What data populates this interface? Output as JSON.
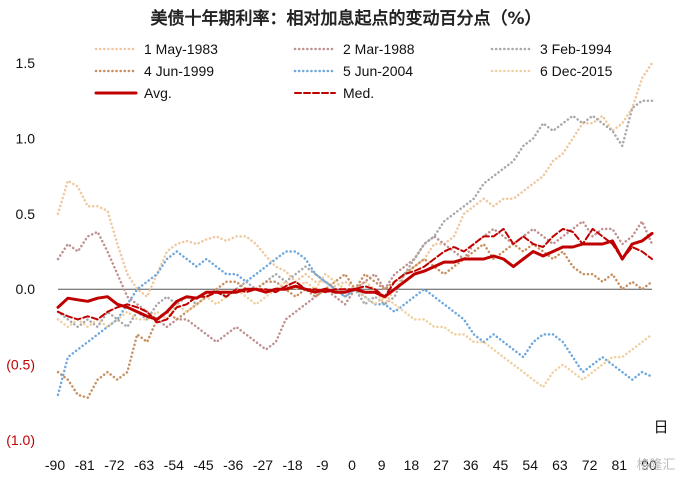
{
  "chart_data": {
    "type": "line",
    "title": "美债十年期利率：相对加息起点的变动百分点（%）",
    "x_unit_label": "日",
    "xlim": [
      -90,
      90
    ],
    "ylim": [
      -1.0,
      1.5
    ],
    "x_ticks": [
      -90,
      -81,
      -72,
      -63,
      -54,
      -45,
      -36,
      -27,
      -18,
      -9,
      0,
      9,
      18,
      27,
      36,
      45,
      54,
      63,
      72,
      81,
      90
    ],
    "x_tick_labels": [
      "-90",
      "-81",
      "-72",
      "-63",
      "-54",
      "-45",
      "-36",
      "-27",
      "-18",
      "-9",
      "0",
      "9",
      "18",
      "27",
      "36",
      "45",
      "54",
      "63",
      "72",
      "81",
      "90"
    ],
    "y_ticks": [
      -1.0,
      -0.5,
      0.0,
      0.5,
      1.0,
      1.5
    ],
    "y_tick_labels": [
      "(1.0)",
      "(0.5)",
      "0.0",
      "0.5",
      "1.0",
      "1.5"
    ],
    "grid": false,
    "legend_position": "top",
    "watermark": "格隆汇",
    "series": [
      {
        "name": "1 May-1983",
        "color": "#f0c8a0",
        "style": "dotted",
        "x": [
          -90,
          -87,
          -84,
          -81,
          -78,
          -75,
          -72,
          -69,
          -66,
          -63,
          -60,
          -57,
          -54,
          -51,
          -48,
          -45,
          -42,
          -39,
          -36,
          -33,
          -30,
          -27,
          -24,
          -21,
          -18,
          -15,
          -12,
          -9,
          -6,
          -3,
          0,
          3,
          6,
          9,
          12,
          15,
          18,
          21,
          24,
          27,
          30,
          33,
          36,
          39,
          42,
          45,
          48,
          51,
          54,
          57,
          60,
          63,
          66,
          69,
          72,
          75,
          78,
          81,
          84,
          87,
          90
        ],
        "y": [
          0.5,
          0.72,
          0.68,
          0.55,
          0.55,
          0.52,
          0.3,
          0.1,
          0.0,
          -0.05,
          0.1,
          0.25,
          0.3,
          0.32,
          0.3,
          0.33,
          0.35,
          0.32,
          0.35,
          0.35,
          0.3,
          0.22,
          0.15,
          0.12,
          0.05,
          0.1,
          0.05,
          0.05,
          0.02,
          0.05,
          0.0,
          0.05,
          0.0,
          -0.1,
          0.0,
          0.1,
          0.15,
          0.2,
          0.3,
          0.3,
          0.35,
          0.5,
          0.55,
          0.6,
          0.55,
          0.6,
          0.6,
          0.65,
          0.7,
          0.75,
          0.85,
          0.9,
          1.0,
          1.1,
          1.1,
          1.15,
          1.05,
          1.1,
          1.2,
          1.4,
          1.5
        ]
      },
      {
        "name": "2 Mar-1988",
        "color": "#c09090",
        "style": "dotted",
        "x": [
          -90,
          -87,
          -84,
          -81,
          -78,
          -75,
          -72,
          -69,
          -66,
          -63,
          -60,
          -57,
          -54,
          -51,
          -48,
          -45,
          -42,
          -39,
          -36,
          -33,
          -30,
          -27,
          -24,
          -21,
          -18,
          -15,
          -12,
          -9,
          -6,
          -3,
          0,
          3,
          6,
          9,
          12,
          15,
          18,
          21,
          24,
          27,
          30,
          33,
          36,
          39,
          42,
          45,
          48,
          51,
          54,
          57,
          60,
          63,
          66,
          69,
          72,
          75,
          78,
          81,
          84,
          87,
          90
        ],
        "y": [
          0.2,
          0.3,
          0.25,
          0.35,
          0.38,
          0.25,
          0.1,
          -0.05,
          -0.1,
          -0.15,
          -0.2,
          -0.25,
          -0.2,
          -0.2,
          -0.25,
          -0.3,
          -0.35,
          -0.3,
          -0.25,
          -0.3,
          -0.35,
          -0.4,
          -0.35,
          -0.2,
          -0.15,
          -0.1,
          -0.05,
          0.0,
          -0.05,
          -0.1,
          0.0,
          0.05,
          0.1,
          0.0,
          0.1,
          0.15,
          0.2,
          0.3,
          0.35,
          0.3,
          0.25,
          0.2,
          0.3,
          0.35,
          0.4,
          0.35,
          0.3,
          0.35,
          0.4,
          0.35,
          0.3,
          0.35,
          0.4,
          0.45,
          0.35,
          0.4,
          0.4,
          0.3,
          0.35,
          0.45,
          0.3
        ]
      },
      {
        "name": "3 Feb-1994",
        "color": "#a8a8a8",
        "style": "dotted",
        "x": [
          -90,
          -87,
          -84,
          -81,
          -78,
          -75,
          -72,
          -69,
          -66,
          -63,
          -60,
          -57,
          -54,
          -51,
          -48,
          -45,
          -42,
          -39,
          -36,
          -33,
          -30,
          -27,
          -24,
          -21,
          -18,
          -15,
          -12,
          -9,
          -6,
          -3,
          0,
          3,
          6,
          9,
          12,
          15,
          18,
          21,
          24,
          27,
          30,
          33,
          36,
          39,
          42,
          45,
          48,
          51,
          54,
          57,
          60,
          63,
          66,
          69,
          72,
          75,
          78,
          81,
          84,
          87,
          90
        ],
        "y": [
          -0.15,
          -0.2,
          -0.25,
          -0.2,
          -0.25,
          -0.15,
          -0.2,
          -0.25,
          -0.15,
          -0.2,
          -0.1,
          -0.05,
          -0.1,
          -0.05,
          -0.1,
          -0.05,
          0.0,
          -0.05,
          0.0,
          0.05,
          0.0,
          0.05,
          0.1,
          0.05,
          0.1,
          0.15,
          0.1,
          0.05,
          0.0,
          -0.05,
          0.0,
          -0.1,
          -0.05,
          -0.1,
          -0.05,
          0.1,
          0.2,
          0.3,
          0.35,
          0.45,
          0.5,
          0.55,
          0.6,
          0.7,
          0.75,
          0.8,
          0.85,
          0.95,
          1.0,
          1.1,
          1.05,
          1.1,
          1.15,
          1.1,
          1.15,
          1.1,
          1.05,
          0.95,
          1.2,
          1.25,
          1.25
        ]
      },
      {
        "name": "4 Jun-1999",
        "color": "#c89060",
        "style": "dotted",
        "x": [
          -90,
          -87,
          -84,
          -81,
          -78,
          -75,
          -72,
          -69,
          -66,
          -63,
          -60,
          -57,
          -54,
          -51,
          -48,
          -45,
          -42,
          -39,
          -36,
          -33,
          -30,
          -27,
          -24,
          -21,
          -18,
          -15,
          -12,
          -9,
          -6,
          -3,
          0,
          3,
          6,
          9,
          12,
          15,
          18,
          21,
          24,
          27,
          30,
          33,
          36,
          39,
          42,
          45,
          48,
          51,
          54,
          57,
          60,
          63,
          66,
          69,
          72,
          75,
          78,
          81,
          84,
          87,
          90
        ],
        "y": [
          -0.55,
          -0.6,
          -0.7,
          -0.72,
          -0.6,
          -0.55,
          -0.6,
          -0.55,
          -0.3,
          -0.35,
          -0.2,
          -0.15,
          -0.2,
          -0.15,
          -0.1,
          -0.05,
          0.0,
          0.05,
          0.05,
          0.0,
          0.0,
          0.05,
          0.05,
          0.0,
          -0.05,
          0.0,
          -0.05,
          0.0,
          0.05,
          0.1,
          0.0,
          0.1,
          0.05,
          0.0,
          0.05,
          0.1,
          0.15,
          0.2,
          0.15,
          0.1,
          0.15,
          0.2,
          0.25,
          0.3,
          0.2,
          0.25,
          0.3,
          0.25,
          0.3,
          0.25,
          0.2,
          0.25,
          0.15,
          0.1,
          0.1,
          0.05,
          0.1,
          0.0,
          0.05,
          0.0,
          0.05
        ]
      },
      {
        "name": "5 Jun-2004",
        "color": "#6fa8dc",
        "style": "dotted",
        "x": [
          -90,
          -87,
          -84,
          -81,
          -78,
          -75,
          -72,
          -69,
          -66,
          -63,
          -60,
          -57,
          -54,
          -51,
          -48,
          -45,
          -42,
          -39,
          -36,
          -33,
          -30,
          -27,
          -24,
          -21,
          -18,
          -15,
          -12,
          -9,
          -6,
          -3,
          0,
          3,
          6,
          9,
          12,
          15,
          18,
          21,
          24,
          27,
          30,
          33,
          36,
          39,
          42,
          45,
          48,
          51,
          54,
          57,
          60,
          63,
          66,
          69,
          72,
          75,
          78,
          81,
          84,
          87,
          90
        ],
        "y": [
          -0.7,
          -0.45,
          -0.4,
          -0.35,
          -0.3,
          -0.25,
          -0.2,
          -0.1,
          0.0,
          0.05,
          0.1,
          0.2,
          0.25,
          0.2,
          0.15,
          0.2,
          0.15,
          0.1,
          0.1,
          0.05,
          0.1,
          0.15,
          0.2,
          0.25,
          0.25,
          0.2,
          0.1,
          0.05,
          0.0,
          -0.05,
          0.0,
          -0.05,
          -0.1,
          -0.1,
          -0.15,
          -0.1,
          -0.05,
          0.0,
          -0.05,
          -0.1,
          -0.15,
          -0.2,
          -0.3,
          -0.35,
          -0.3,
          -0.35,
          -0.4,
          -0.45,
          -0.35,
          -0.3,
          -0.3,
          -0.35,
          -0.45,
          -0.55,
          -0.5,
          -0.45,
          -0.5,
          -0.55,
          -0.6,
          -0.55,
          -0.58
        ]
      },
      {
        "name": "6 Dec-2015",
        "color": "#f0d0a0",
        "style": "dotted",
        "x": [
          -90,
          -87,
          -84,
          -81,
          -78,
          -75,
          -72,
          -69,
          -66,
          -63,
          -60,
          -57,
          -54,
          -51,
          -48,
          -45,
          -42,
          -39,
          -36,
          -33,
          -30,
          -27,
          -24,
          -21,
          -18,
          -15,
          -12,
          -9,
          -6,
          -3,
          0,
          3,
          6,
          9,
          12,
          15,
          18,
          21,
          24,
          27,
          30,
          33,
          36,
          39,
          42,
          45,
          48,
          51,
          54,
          57,
          60,
          63,
          66,
          69,
          72,
          75,
          78,
          81,
          84,
          87,
          90
        ],
        "y": [
          -0.2,
          -0.25,
          -0.2,
          -0.25,
          -0.2,
          -0.25,
          -0.2,
          -0.15,
          -0.2,
          -0.2,
          -0.15,
          -0.2,
          -0.1,
          -0.15,
          -0.1,
          -0.05,
          -0.1,
          -0.05,
          0.0,
          -0.05,
          -0.1,
          -0.05,
          0.0,
          0.05,
          0.0,
          0.05,
          0.0,
          0.1,
          0.05,
          0.0,
          0.0,
          -0.05,
          -0.1,
          -0.05,
          -0.1,
          -0.15,
          -0.2,
          -0.2,
          -0.25,
          -0.25,
          -0.3,
          -0.3,
          -0.35,
          -0.35,
          -0.4,
          -0.45,
          -0.5,
          -0.55,
          -0.6,
          -0.65,
          -0.55,
          -0.5,
          -0.55,
          -0.6,
          -0.55,
          -0.5,
          -0.45,
          -0.45,
          -0.4,
          -0.35,
          -0.3
        ]
      },
      {
        "name": "Avg.",
        "color": "#c00000",
        "style": "solid",
        "x": [
          -90,
          -87,
          -84,
          -81,
          -78,
          -75,
          -72,
          -69,
          -66,
          -63,
          -60,
          -57,
          -54,
          -51,
          -48,
          -45,
          -42,
          -39,
          -36,
          -33,
          -30,
          -27,
          -24,
          -21,
          -18,
          -15,
          -12,
          -9,
          -6,
          -3,
          0,
          3,
          6,
          9,
          12,
          15,
          18,
          21,
          24,
          27,
          30,
          33,
          36,
          39,
          42,
          45,
          48,
          51,
          54,
          57,
          60,
          63,
          66,
          69,
          72,
          75,
          78,
          81,
          84,
          87,
          90
        ],
        "y": [
          -0.12,
          -0.06,
          -0.07,
          -0.08,
          -0.06,
          -0.05,
          -0.1,
          -0.12,
          -0.15,
          -0.18,
          -0.2,
          -0.15,
          -0.08,
          -0.05,
          -0.06,
          -0.02,
          -0.02,
          -0.02,
          -0.02,
          0.0,
          0.0,
          -0.02,
          0.0,
          0.0,
          0.02,
          0.0,
          -0.02,
          0.0,
          -0.02,
          -0.02,
          0.0,
          -0.02,
          -0.02,
          -0.05,
          0.0,
          0.05,
          0.1,
          0.12,
          0.15,
          0.18,
          0.18,
          0.2,
          0.2,
          0.2,
          0.22,
          0.2,
          0.15,
          0.2,
          0.25,
          0.22,
          0.25,
          0.28,
          0.28,
          0.3,
          0.3,
          0.3,
          0.32,
          0.2,
          0.3,
          0.32,
          0.37
        ]
      },
      {
        "name": "Med.",
        "color": "#c00000",
        "style": "dashed",
        "x": [
          -90,
          -87,
          -84,
          -81,
          -78,
          -75,
          -72,
          -69,
          -66,
          -63,
          -60,
          -57,
          -54,
          -51,
          -48,
          -45,
          -42,
          -39,
          -36,
          -33,
          -30,
          -27,
          -24,
          -21,
          -18,
          -15,
          -12,
          -9,
          -6,
          -3,
          0,
          3,
          6,
          9,
          12,
          15,
          18,
          21,
          24,
          27,
          30,
          33,
          36,
          39,
          42,
          45,
          48,
          51,
          54,
          57,
          60,
          63,
          66,
          69,
          72,
          75,
          78,
          81,
          84,
          87,
          90
        ],
        "y": [
          -0.15,
          -0.18,
          -0.2,
          -0.18,
          -0.2,
          -0.15,
          -0.12,
          -0.1,
          -0.12,
          -0.15,
          -0.22,
          -0.2,
          -0.12,
          -0.1,
          -0.05,
          -0.05,
          -0.02,
          -0.05,
          0.0,
          -0.02,
          0.0,
          0.0,
          -0.02,
          0.02,
          0.05,
          0.0,
          0.0,
          -0.02,
          0.0,
          0.0,
          0.0,
          0.02,
          0.0,
          -0.05,
          0.05,
          0.1,
          0.12,
          0.15,
          0.2,
          0.25,
          0.28,
          0.25,
          0.3,
          0.35,
          0.35,
          0.4,
          0.3,
          0.35,
          0.3,
          0.28,
          0.35,
          0.4,
          0.38,
          0.3,
          0.4,
          0.35,
          0.3,
          0.2,
          0.28,
          0.25,
          0.2
        ]
      }
    ]
  }
}
